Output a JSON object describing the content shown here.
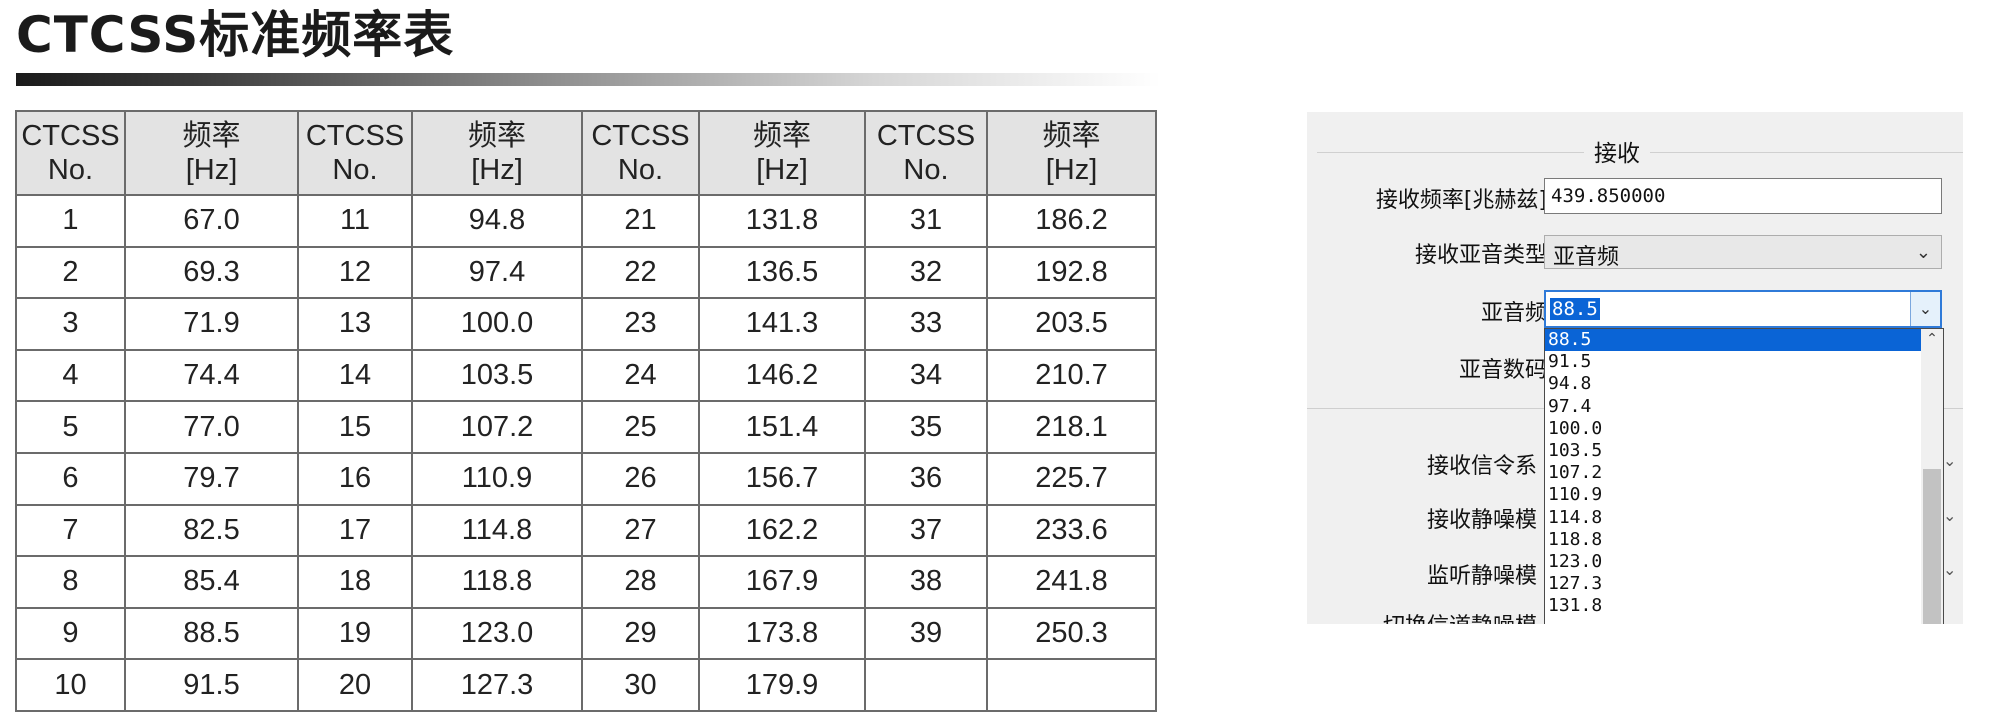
{
  "title": "CTCSS标准频率表",
  "table": {
    "headers": [
      {
        "l1": "CTCSS",
        "l2": "No."
      },
      {
        "l1": "频率",
        "l2": "[Hz]"
      },
      {
        "l1": "CTCSS",
        "l2": "No."
      },
      {
        "l1": "频率",
        "l2": "[Hz]"
      },
      {
        "l1": "CTCSS",
        "l2": "No."
      },
      {
        "l1": "频率",
        "l2": "[Hz]"
      },
      {
        "l1": "CTCSS",
        "l2": "No."
      },
      {
        "l1": "频率",
        "l2": "[Hz]"
      }
    ],
    "rows": [
      [
        "1",
        "67.0",
        "11",
        "94.8",
        "21",
        "131.8",
        "31",
        "186.2"
      ],
      [
        "2",
        "69.3",
        "12",
        "97.4",
        "22",
        "136.5",
        "32",
        "192.8"
      ],
      [
        "3",
        "71.9",
        "13",
        "100.0",
        "23",
        "141.3",
        "33",
        "203.5"
      ],
      [
        "4",
        "74.4",
        "14",
        "103.5",
        "24",
        "146.2",
        "34",
        "210.7"
      ],
      [
        "5",
        "77.0",
        "15",
        "107.2",
        "25",
        "151.4",
        "35",
        "218.1"
      ],
      [
        "6",
        "79.7",
        "16",
        "110.9",
        "26",
        "156.7",
        "36",
        "225.7"
      ],
      [
        "7",
        "82.5",
        "17",
        "114.8",
        "27",
        "162.2",
        "37",
        "233.6"
      ],
      [
        "8",
        "85.4",
        "18",
        "118.8",
        "28",
        "167.9",
        "38",
        "241.8"
      ],
      [
        "9",
        "88.5",
        "19",
        "123.0",
        "29",
        "173.8",
        "39",
        "250.3"
      ],
      [
        "10",
        "91.5",
        "20",
        "127.3",
        "30",
        "179.9",
        "",
        ""
      ]
    ]
  },
  "dialog": {
    "group_title": "接收",
    "freq_label": "接收频率[兆赫兹]",
    "freq_value": "439.850000",
    "tone_type_label": "接收亚音类型",
    "tone_type_value": "亚音频",
    "subtone_label": "亚音频",
    "subtone_value": "88.5",
    "subtone_code_label": "亚音数码",
    "signal_label": "接收信令系",
    "squelch_label": "接收静噪模",
    "monitor_label": "监听静噪模",
    "cut_label": "切换信道静噪模",
    "options": [
      "88.5",
      "91.5",
      "94.8",
      "97.4",
      "100.0",
      "103.5",
      "107.2",
      "110.9",
      "114.8",
      "118.8",
      "123.0",
      "127.3",
      "131.8"
    ],
    "selected_index": 0
  }
}
